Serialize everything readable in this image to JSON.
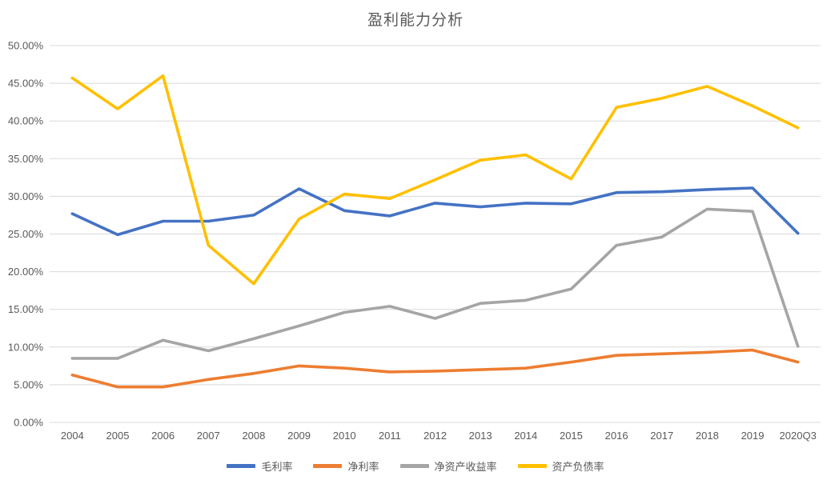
{
  "chart_data": {
    "type": "line",
    "title": "盈利能力分析",
    "categories": [
      "2004",
      "2005",
      "2006",
      "2007",
      "2008",
      "2009",
      "2010",
      "2011",
      "2012",
      "2013",
      "2014",
      "2015",
      "2016",
      "2017",
      "2018",
      "2019",
      "2020Q3"
    ],
    "series": [
      {
        "id": "gross-margin",
        "name": "毛利率",
        "color": "#4472C4",
        "values": [
          27.7,
          24.9,
          26.7,
          26.7,
          27.5,
          31.0,
          28.1,
          27.4,
          29.1,
          28.6,
          29.1,
          29.0,
          30.5,
          30.6,
          30.9,
          31.1,
          25.1
        ]
      },
      {
        "id": "net-margin",
        "name": "净利率",
        "color": "#ED7D31",
        "values": [
          6.3,
          4.7,
          4.7,
          5.7,
          6.5,
          7.5,
          7.2,
          6.7,
          6.8,
          7.0,
          7.2,
          8.0,
          8.9,
          9.1,
          9.3,
          9.6,
          8.0
        ]
      },
      {
        "id": "return-on-equity",
        "name": "净资产收益率",
        "color": "#A5A5A5",
        "values": [
          8.5,
          8.5,
          10.9,
          9.5,
          11.1,
          12.8,
          14.6,
          15.4,
          13.8,
          15.8,
          16.2,
          17.7,
          23.5,
          24.6,
          28.3,
          28.0,
          10.1
        ]
      },
      {
        "id": "debt-to-asset-ratio",
        "name": "资产负债率",
        "color": "#FFC000",
        "values": [
          45.7,
          41.6,
          46.0,
          23.5,
          18.4,
          27.0,
          30.3,
          29.7,
          32.2,
          34.8,
          35.5,
          32.3,
          41.8,
          43.0,
          44.6,
          42.0,
          39.1
        ]
      }
    ],
    "ylim": [
      0,
      50
    ],
    "y_tick_step": 5,
    "y_tick_labels": [
      "0.00%",
      "5.00%",
      "10.00%",
      "15.00%",
      "20.00%",
      "25.00%",
      "30.00%",
      "35.00%",
      "40.00%",
      "45.00%",
      "50.00%"
    ],
    "grid": "horizontal",
    "legend_position": "bottom",
    "colors": {
      "background": "#FFFFFF",
      "gridline": "#D9D9D9",
      "axis_label": "#595959",
      "title": "#595959"
    }
  }
}
